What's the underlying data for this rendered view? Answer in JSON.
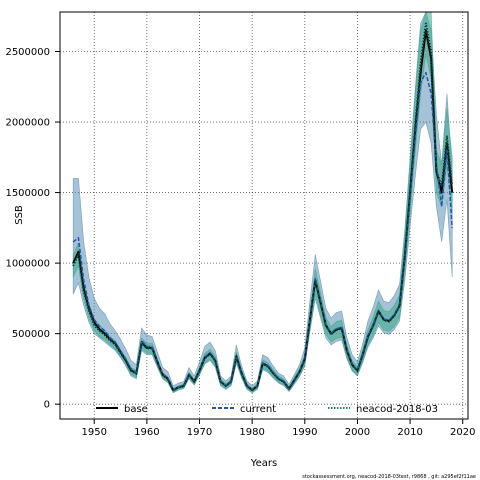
{
  "chart_data": {
    "type": "line",
    "xlabel": "Years",
    "ylabel": "SSB",
    "xlim": [
      1943.5,
      2021
    ],
    "ylim": [
      -105000,
      2780000
    ],
    "x_ticks": [
      1950,
      1960,
      1970,
      1980,
      1990,
      2000,
      2010,
      2020
    ],
    "y_ticks": [
      0,
      500000,
      1000000,
      1500000,
      2000000,
      2500000
    ],
    "x_tick_labels": [
      "1950",
      "1960",
      "1970",
      "1980",
      "1990",
      "2000",
      "2010",
      "2020"
    ],
    "y_tick_labels": [
      "0",
      "500000",
      "1000000",
      "1500000",
      "2000000",
      "2500000"
    ],
    "grid": true,
    "legend_position": "bottom",
    "colors": {
      "base": "#000000",
      "current": "#2255aa",
      "neacod": "#1a8a6a",
      "band_current": "#5b8fb5",
      "band_neacod": "#3aaa8a"
    },
    "series": [
      {
        "name": "base",
        "style": "solid",
        "years": [
          1946,
          1947,
          1948,
          1949,
          1950,
          1951,
          1952,
          1953,
          1954,
          1955,
          1956,
          1957,
          1958,
          1959,
          1960,
          1961,
          1962,
          1963,
          1964,
          1965,
          1966,
          1967,
          1968,
          1969,
          1970,
          1971,
          1972,
          1973,
          1974,
          1975,
          1976,
          1977,
          1978,
          1979,
          1980,
          1981,
          1982,
          1983,
          1984,
          1985,
          1986,
          1987,
          1988,
          1989,
          1990,
          1991,
          1992,
          1993,
          1994,
          1995,
          1996,
          1997,
          1998,
          1999,
          2000,
          2001,
          2002,
          2003,
          2004,
          2005,
          2006,
          2007,
          2008,
          2009,
          2010,
          2011,
          2012,
          2013,
          2014,
          2015,
          2016,
          2017,
          2018
        ],
        "values": [
          1000000,
          1080000,
          820000,
          680000,
          580000,
          530000,
          500000,
          460000,
          430000,
          370000,
          310000,
          240000,
          220000,
          440000,
          400000,
          400000,
          300000,
          210000,
          180000,
          100000,
          120000,
          130000,
          210000,
          160000,
          240000,
          330000,
          360000,
          310000,
          160000,
          130000,
          160000,
          340000,
          220000,
          130000,
          100000,
          130000,
          290000,
          270000,
          220000,
          180000,
          160000,
          110000,
          170000,
          230000,
          320000,
          610000,
          880000,
          720000,
          560000,
          500000,
          530000,
          540000,
          380000,
          280000,
          240000,
          350000,
          480000,
          560000,
          660000,
          600000,
          590000,
          630000,
          700000,
          1050000,
          1500000,
          1950000,
          2350000,
          2650000,
          2450000,
          1650000,
          1500000,
          1850000,
          1500000
        ]
      },
      {
        "name": "current",
        "style": "dashed",
        "years": [
          1946,
          1947,
          1948,
          1949,
          1950,
          1951,
          1952,
          1953,
          1954,
          1955,
          1956,
          1957,
          1958,
          1959,
          1960,
          1961,
          1962,
          1963,
          1964,
          1965,
          1966,
          1967,
          1968,
          1969,
          1970,
          1971,
          1972,
          1973,
          1974,
          1975,
          1976,
          1977,
          1978,
          1979,
          1980,
          1981,
          1982,
          1983,
          1984,
          1985,
          1986,
          1987,
          1988,
          1989,
          1990,
          1991,
          1992,
          1993,
          1994,
          1995,
          1996,
          1997,
          1998,
          1999,
          2000,
          2001,
          2002,
          2003,
          2004,
          2005,
          2006,
          2007,
          2008,
          2009,
          2010,
          2011,
          2012,
          2013,
          2014,
          2015,
          2016,
          2017,
          2018
        ],
        "values": [
          1150000,
          1180000,
          880000,
          700000,
          600000,
          550000,
          520000,
          470000,
          440000,
          380000,
          320000,
          250000,
          225000,
          450000,
          410000,
          405000,
          305000,
          215000,
          185000,
          102000,
          122000,
          132000,
          212000,
          162000,
          245000,
          335000,
          365000,
          312000,
          162000,
          132000,
          162000,
          345000,
          222000,
          132000,
          102000,
          132000,
          292000,
          272000,
          222000,
          182000,
          162000,
          112000,
          172000,
          232000,
          325000,
          620000,
          890000,
          730000,
          565000,
          505000,
          535000,
          545000,
          385000,
          285000,
          242000,
          352000,
          485000,
          565000,
          665000,
          605000,
          595000,
          635000,
          705000,
          1040000,
          1480000,
          1900000,
          2280000,
          2350000,
          2200000,
          1700000,
          1400000,
          1800000,
          1250000
        ]
      },
      {
        "name": "neacod-2018-03",
        "style": "dotted",
        "years": [
          1946,
          1947,
          1948,
          1949,
          1950,
          1951,
          1952,
          1953,
          1954,
          1955,
          1956,
          1957,
          1958,
          1959,
          1960,
          1961,
          1962,
          1963,
          1964,
          1965,
          1966,
          1967,
          1968,
          1969,
          1970,
          1971,
          1972,
          1973,
          1974,
          1975,
          1976,
          1977,
          1978,
          1979,
          1980,
          1981,
          1982,
          1983,
          1984,
          1985,
          1986,
          1987,
          1988,
          1989,
          1990,
          1991,
          1992,
          1993,
          1994,
          1995,
          1996,
          1997,
          1998,
          1999,
          2000,
          2001,
          2002,
          2003,
          2004,
          2005,
          2006,
          2007,
          2008,
          2009,
          2010,
          2011,
          2012,
          2013,
          2014,
          2015,
          2016,
          2017,
          2018
        ],
        "values": [
          980000,
          1060000,
          800000,
          660000,
          560000,
          520000,
          490000,
          450000,
          420000,
          360000,
          305000,
          235000,
          215000,
          430000,
          395000,
          395000,
          295000,
          205000,
          175000,
          98000,
          118000,
          128000,
          205000,
          158000,
          235000,
          325000,
          355000,
          305000,
          158000,
          128000,
          158000,
          335000,
          218000,
          128000,
          98000,
          128000,
          285000,
          265000,
          218000,
          178000,
          158000,
          108000,
          168000,
          228000,
          315000,
          600000,
          870000,
          710000,
          555000,
          495000,
          525000,
          535000,
          375000,
          275000,
          235000,
          345000,
          475000,
          555000,
          655000,
          595000,
          585000,
          625000,
          695000,
          1060000,
          1520000,
          2000000,
          2420000,
          2700000,
          2500000,
          1650000,
          1550000,
          1900000,
          1550000
        ]
      }
    ],
    "bands": [
      {
        "name": "current",
        "years": [
          1946,
          1947,
          1948,
          1949,
          1950,
          1951,
          1952,
          1953,
          1954,
          1955,
          1956,
          1957,
          1958,
          1959,
          1960,
          1961,
          1962,
          1963,
          1964,
          1965,
          1966,
          1967,
          1968,
          1969,
          1970,
          1971,
          1972,
          1973,
          1974,
          1975,
          1976,
          1977,
          1978,
          1979,
          1980,
          1981,
          1982,
          1983,
          1984,
          1985,
          1986,
          1987,
          1988,
          1989,
          1990,
          1991,
          1992,
          1993,
          1994,
          1995,
          1996,
          1997,
          1998,
          1999,
          2000,
          2001,
          2002,
          2003,
          2004,
          2005,
          2006,
          2007,
          2008,
          2009,
          2010,
          2011,
          2012,
          2013,
          2014,
          2015,
          2016,
          2017,
          2018
        ],
        "lower": [
          780000,
          860000,
          700000,
          580000,
          500000,
          470000,
          440000,
          410000,
          380000,
          330000,
          270000,
          200000,
          180000,
          380000,
          350000,
          350000,
          260000,
          180000,
          150000,
          80000,
          100000,
          110000,
          180000,
          135000,
          205000,
          285000,
          310000,
          260000,
          130000,
          105000,
          130000,
          290000,
          185000,
          105000,
          80000,
          105000,
          245000,
          225000,
          185000,
          150000,
          130000,
          90000,
          140000,
          195000,
          270000,
          520000,
          750000,
          610000,
          470000,
          420000,
          445000,
          455000,
          320000,
          235000,
          200000,
          295000,
          405000,
          470000,
          555000,
          505000,
          495000,
          530000,
          590000,
          880000,
          1260000,
          1620000,
          1950000,
          2000000,
          1850000,
          1400000,
          1150000,
          1450000,
          900000
        ],
        "upper": [
          1600000,
          1600000,
          1150000,
          900000,
          750000,
          680000,
          640000,
          570000,
          520000,
          460000,
          390000,
          310000,
          280000,
          540000,
          490000,
          480000,
          370000,
          260000,
          230000,
          130000,
          150000,
          160000,
          260000,
          200000,
          300000,
          410000,
          440000,
          380000,
          200000,
          165000,
          200000,
          420000,
          270000,
          165000,
          130000,
          165000,
          350000,
          330000,
          270000,
          220000,
          200000,
          140000,
          210000,
          280000,
          400000,
          740000,
          1060000,
          870000,
          680000,
          610000,
          650000,
          660000,
          470000,
          350000,
          300000,
          430000,
          590000,
          690000,
          810000,
          730000,
          720000,
          770000,
          850000,
          1240000,
          1750000,
          2250000,
          2700000,
          2780000,
          2650000,
          2050000,
          1700000,
          2200000,
          1650000
        ]
      },
      {
        "name": "neacod-2018-03",
        "years": [
          1946,
          1947,
          1948,
          1949,
          1950,
          1951,
          1952,
          1953,
          1954,
          1955,
          1956,
          1957,
          1958,
          1959,
          1960,
          1961,
          1962,
          1963,
          1964,
          1965,
          1966,
          1967,
          1968,
          1969,
          1970,
          1971,
          1972,
          1973,
          1974,
          1975,
          1976,
          1977,
          1978,
          1979,
          1980,
          1981,
          1982,
          1983,
          1984,
          1985,
          1986,
          1987,
          1988,
          1989,
          1990,
          1991,
          1992,
          1993,
          1994,
          1995,
          1996,
          1997,
          1998,
          1999,
          2000,
          2001,
          2002,
          2003,
          2004,
          2005,
          2006,
          2007,
          2008,
          2009,
          2010,
          2011,
          2012,
          2013,
          2014,
          2015,
          2016,
          2017,
          2018
        ],
        "lower": [
          900000,
          980000,
          740000,
          610000,
          520000,
          480000,
          455000,
          420000,
          390000,
          335000,
          280000,
          210000,
          190000,
          395000,
          360000,
          360000,
          270000,
          185000,
          158000,
          85000,
          105000,
          115000,
          185000,
          140000,
          210000,
          290000,
          320000,
          270000,
          138000,
          110000,
          138000,
          300000,
          192000,
          110000,
          85000,
          110000,
          255000,
          235000,
          192000,
          155000,
          138000,
          94000,
          148000,
          202000,
          280000,
          540000,
          780000,
          635000,
          495000,
          440000,
          465000,
          475000,
          330000,
          242000,
          205000,
          305000,
          420000,
          490000,
          580000,
          525000,
          515000,
          550000,
          615000,
          940000,
          1360000,
          1800000,
          2200000,
          2480000,
          2300000,
          1500000,
          1400000,
          1700000,
          1350000
        ],
        "upper": [
          1060000,
          1140000,
          860000,
          710000,
          600000,
          560000,
          525000,
          480000,
          450000,
          385000,
          330000,
          260000,
          240000,
          470000,
          430000,
          430000,
          320000,
          225000,
          192000,
          111000,
          131000,
          141000,
          225000,
          176000,
          260000,
          360000,
          390000,
          340000,
          178000,
          146000,
          178000,
          370000,
          244000,
          146000,
          111000,
          146000,
          315000,
          295000,
          244000,
          201000,
          178000,
          122000,
          188000,
          254000,
          350000,
          660000,
          960000,
          785000,
          615000,
          550000,
          585000,
          595000,
          420000,
          308000,
          265000,
          385000,
          530000,
          620000,
          730000,
          665000,
          655000,
          700000,
          775000,
          1180000,
          1680000,
          2200000,
          2650000,
          2780000,
          2780000,
          1800000,
          1700000,
          2100000,
          1750000
        ]
      }
    ],
    "legend": [
      "base",
      "current",
      "neacod-2018-03"
    ]
  },
  "footer_text": "stockassessment.org, neacod-2018-03test, r9868 , git: a295ef2f11ae"
}
